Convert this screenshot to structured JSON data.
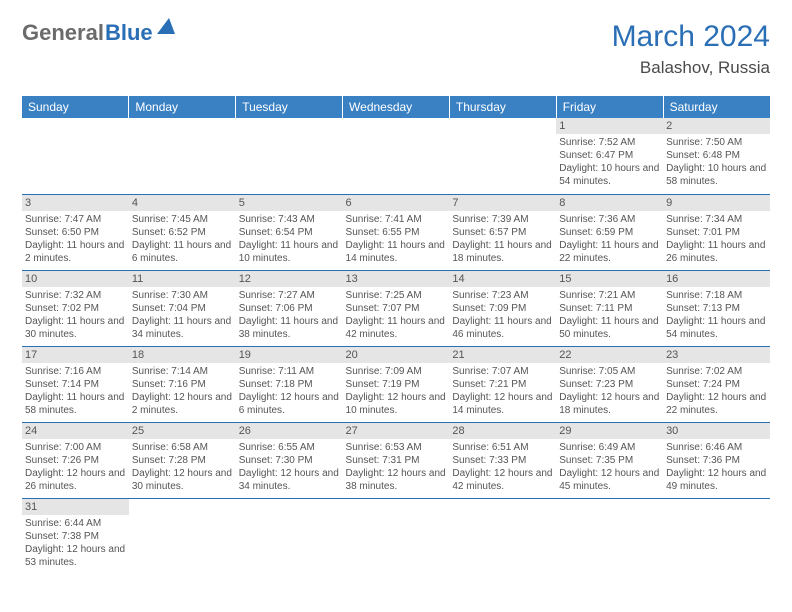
{
  "logo": {
    "text1": "General",
    "text2": "Blue"
  },
  "title": "March 2024",
  "location": "Balashov, Russia",
  "colors": {
    "header_bg": "#3a81c4",
    "accent": "#2a6fb5",
    "daynum_bg": "#e5e5e5",
    "text": "#555555",
    "page_bg": "#ffffff"
  },
  "typography": {
    "title_fontsize": 30,
    "header_fontsize": 12,
    "cell_fontsize": 10
  },
  "day_headers": [
    "Sunday",
    "Monday",
    "Tuesday",
    "Wednesday",
    "Thursday",
    "Friday",
    "Saturday"
  ],
  "weeks": [
    [
      {
        "day": "",
        "lines": []
      },
      {
        "day": "",
        "lines": []
      },
      {
        "day": "",
        "lines": []
      },
      {
        "day": "",
        "lines": []
      },
      {
        "day": "",
        "lines": []
      },
      {
        "day": "1",
        "lines": [
          "Sunrise: 7:52 AM",
          "Sunset: 6:47 PM",
          "Daylight: 10 hours and 54 minutes."
        ]
      },
      {
        "day": "2",
        "lines": [
          "Sunrise: 7:50 AM",
          "Sunset: 6:48 PM",
          "Daylight: 10 hours and 58 minutes."
        ]
      }
    ],
    [
      {
        "day": "3",
        "lines": [
          "Sunrise: 7:47 AM",
          "Sunset: 6:50 PM",
          "Daylight: 11 hours and 2 minutes."
        ]
      },
      {
        "day": "4",
        "lines": [
          "Sunrise: 7:45 AM",
          "Sunset: 6:52 PM",
          "Daylight: 11 hours and 6 minutes."
        ]
      },
      {
        "day": "5",
        "lines": [
          "Sunrise: 7:43 AM",
          "Sunset: 6:54 PM",
          "Daylight: 11 hours and 10 minutes."
        ]
      },
      {
        "day": "6",
        "lines": [
          "Sunrise: 7:41 AM",
          "Sunset: 6:55 PM",
          "Daylight: 11 hours and 14 minutes."
        ]
      },
      {
        "day": "7",
        "lines": [
          "Sunrise: 7:39 AM",
          "Sunset: 6:57 PM",
          "Daylight: 11 hours and 18 minutes."
        ]
      },
      {
        "day": "8",
        "lines": [
          "Sunrise: 7:36 AM",
          "Sunset: 6:59 PM",
          "Daylight: 11 hours and 22 minutes."
        ]
      },
      {
        "day": "9",
        "lines": [
          "Sunrise: 7:34 AM",
          "Sunset: 7:01 PM",
          "Daylight: 11 hours and 26 minutes."
        ]
      }
    ],
    [
      {
        "day": "10",
        "lines": [
          "Sunrise: 7:32 AM",
          "Sunset: 7:02 PM",
          "Daylight: 11 hours and 30 minutes."
        ]
      },
      {
        "day": "11",
        "lines": [
          "Sunrise: 7:30 AM",
          "Sunset: 7:04 PM",
          "Daylight: 11 hours and 34 minutes."
        ]
      },
      {
        "day": "12",
        "lines": [
          "Sunrise: 7:27 AM",
          "Sunset: 7:06 PM",
          "Daylight: 11 hours and 38 minutes."
        ]
      },
      {
        "day": "13",
        "lines": [
          "Sunrise: 7:25 AM",
          "Sunset: 7:07 PM",
          "Daylight: 11 hours and 42 minutes."
        ]
      },
      {
        "day": "14",
        "lines": [
          "Sunrise: 7:23 AM",
          "Sunset: 7:09 PM",
          "Daylight: 11 hours and 46 minutes."
        ]
      },
      {
        "day": "15",
        "lines": [
          "Sunrise: 7:21 AM",
          "Sunset: 7:11 PM",
          "Daylight: 11 hours and 50 minutes."
        ]
      },
      {
        "day": "16",
        "lines": [
          "Sunrise: 7:18 AM",
          "Sunset: 7:13 PM",
          "Daylight: 11 hours and 54 minutes."
        ]
      }
    ],
    [
      {
        "day": "17",
        "lines": [
          "Sunrise: 7:16 AM",
          "Sunset: 7:14 PM",
          "Daylight: 11 hours and 58 minutes."
        ]
      },
      {
        "day": "18",
        "lines": [
          "Sunrise: 7:14 AM",
          "Sunset: 7:16 PM",
          "Daylight: 12 hours and 2 minutes."
        ]
      },
      {
        "day": "19",
        "lines": [
          "Sunrise: 7:11 AM",
          "Sunset: 7:18 PM",
          "Daylight: 12 hours and 6 minutes."
        ]
      },
      {
        "day": "20",
        "lines": [
          "Sunrise: 7:09 AM",
          "Sunset: 7:19 PM",
          "Daylight: 12 hours and 10 minutes."
        ]
      },
      {
        "day": "21",
        "lines": [
          "Sunrise: 7:07 AM",
          "Sunset: 7:21 PM",
          "Daylight: 12 hours and 14 minutes."
        ]
      },
      {
        "day": "22",
        "lines": [
          "Sunrise: 7:05 AM",
          "Sunset: 7:23 PM",
          "Daylight: 12 hours and 18 minutes."
        ]
      },
      {
        "day": "23",
        "lines": [
          "Sunrise: 7:02 AM",
          "Sunset: 7:24 PM",
          "Daylight: 12 hours and 22 minutes."
        ]
      }
    ],
    [
      {
        "day": "24",
        "lines": [
          "Sunrise: 7:00 AM",
          "Sunset: 7:26 PM",
          "Daylight: 12 hours and 26 minutes."
        ]
      },
      {
        "day": "25",
        "lines": [
          "Sunrise: 6:58 AM",
          "Sunset: 7:28 PM",
          "Daylight: 12 hours and 30 minutes."
        ]
      },
      {
        "day": "26",
        "lines": [
          "Sunrise: 6:55 AM",
          "Sunset: 7:30 PM",
          "Daylight: 12 hours and 34 minutes."
        ]
      },
      {
        "day": "27",
        "lines": [
          "Sunrise: 6:53 AM",
          "Sunset: 7:31 PM",
          "Daylight: 12 hours and 38 minutes."
        ]
      },
      {
        "day": "28",
        "lines": [
          "Sunrise: 6:51 AM",
          "Sunset: 7:33 PM",
          "Daylight: 12 hours and 42 minutes."
        ]
      },
      {
        "day": "29",
        "lines": [
          "Sunrise: 6:49 AM",
          "Sunset: 7:35 PM",
          "Daylight: 12 hours and 45 minutes."
        ]
      },
      {
        "day": "30",
        "lines": [
          "Sunrise: 6:46 AM",
          "Sunset: 7:36 PM",
          "Daylight: 12 hours and 49 minutes."
        ]
      }
    ],
    [
      {
        "day": "31",
        "lines": [
          "Sunrise: 6:44 AM",
          "Sunset: 7:38 PM",
          "Daylight: 12 hours and 53 minutes."
        ]
      },
      {
        "day": "",
        "lines": []
      },
      {
        "day": "",
        "lines": []
      },
      {
        "day": "",
        "lines": []
      },
      {
        "day": "",
        "lines": []
      },
      {
        "day": "",
        "lines": []
      },
      {
        "day": "",
        "lines": []
      }
    ]
  ]
}
